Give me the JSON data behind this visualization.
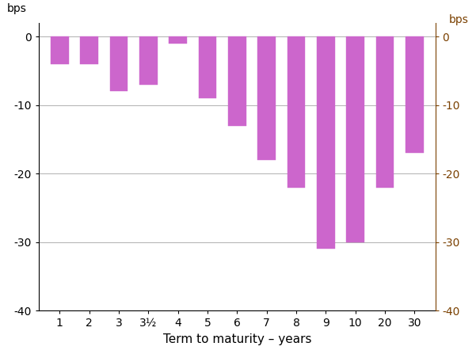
{
  "categories": [
    "1",
    "2",
    "3",
    "3½",
    "4",
    "5",
    "6",
    "7",
    "8",
    "9",
    "10",
    "20",
    "30"
  ],
  "values": [
    -4,
    -4,
    -8,
    -7,
    -1,
    -9,
    -13,
    -18,
    -22,
    -31,
    -30,
    -22,
    -17
  ],
  "bar_color": "#cc66cc",
  "ylim": [
    -40,
    2
  ],
  "yticks": [
    -40,
    -30,
    -20,
    -10,
    0
  ],
  "ytick_labels": [
    "-40",
    "-30",
    "-20",
    "-10",
    "0"
  ],
  "xlabel": "Term to maturity – years",
  "ylabel_left": "bps",
  "ylabel_right": "bps",
  "grid_color": "#b0b0b0",
  "background_color": "#ffffff",
  "spine_color": "#000000",
  "right_axis_color": "#7a4000",
  "bar_width": 0.6
}
